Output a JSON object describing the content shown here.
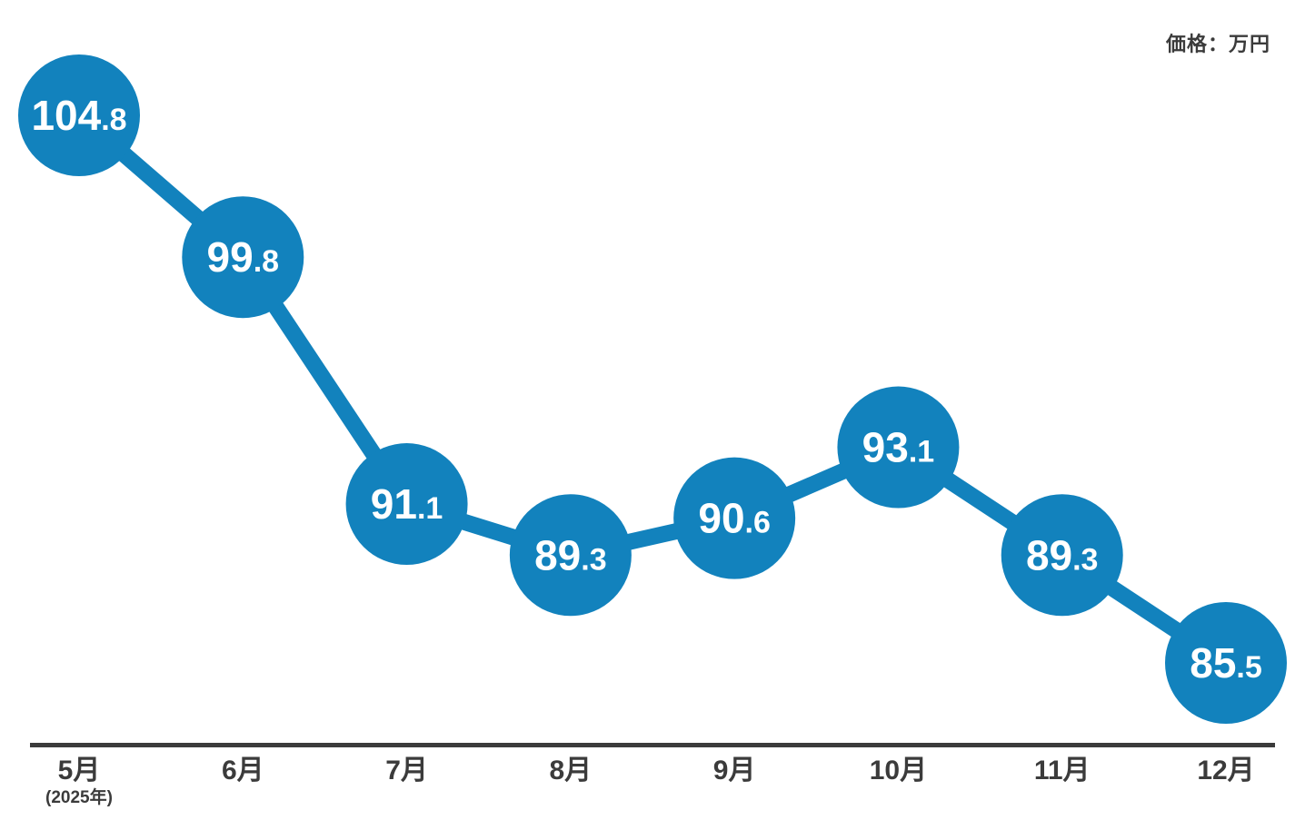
{
  "chart_data": {
    "type": "line",
    "title": "",
    "unit_label": "価格：万円",
    "categories": [
      "5月",
      "6月",
      "7月",
      "8月",
      "9月",
      "10月",
      "11月",
      "12月"
    ],
    "x_sub_label": "(2025年)",
    "series": [
      {
        "name": "価格",
        "values": [
          104.8,
          99.8,
          91.1,
          89.3,
          90.6,
          93.1,
          89.3,
          85.5
        ]
      }
    ],
    "ylim": [
      85.5,
      104.8
    ],
    "grid": false,
    "legend": "none",
    "colors": {
      "line": "#1282BD",
      "marker": "#1282BD",
      "value_text": "#FFFFFF",
      "axis": "#3b3b3b",
      "tick_label": "#3b3b3b"
    }
  }
}
